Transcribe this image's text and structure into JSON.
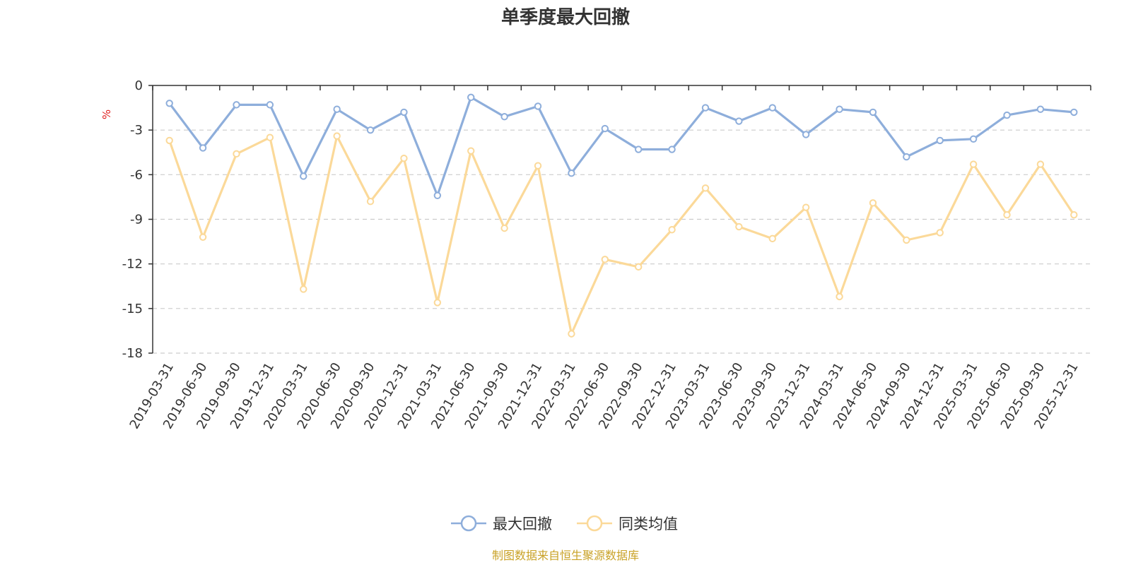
{
  "chart_data": {
    "type": "line",
    "title": "单季度最大回撤",
    "ylabel": "%",
    "ylim": [
      -18,
      0
    ],
    "yticks": [
      "0",
      "-3",
      "-6",
      "-9",
      "-12",
      "-15",
      "-18"
    ],
    "grid": true,
    "legend_position": "bottom-center",
    "categories": [
      "2019-03-31",
      "2019-06-30",
      "2019-09-30",
      "2019-12-31",
      "2020-03-31",
      "2020-06-30",
      "2020-09-30",
      "2020-12-31",
      "2021-03-31",
      "2021-06-30",
      "2021-09-30",
      "2021-12-31",
      "2022-03-31",
      "2022-06-30",
      "2022-09-30",
      "2022-12-31",
      "2023-03-31",
      "2023-06-30",
      "2023-09-30",
      "2023-12-31",
      "2024-03-31",
      "2024-06-30",
      "2024-09-30",
      "2024-12-31",
      "2025-03-31",
      "2025-06-30",
      "2025-09-30",
      "2025-12-31"
    ],
    "series": [
      {
        "name": "最大回撤",
        "color": "#8eaedb",
        "values": [
          -1.2,
          -4.2,
          -1.3,
          -1.3,
          -6.1,
          -1.6,
          -3.0,
          -1.8,
          -7.4,
          -0.8,
          -2.1,
          -1.4,
          -5.9,
          -2.9,
          -4.3,
          -4.3,
          -1.5,
          -2.4,
          -1.5,
          -3.3,
          -1.6,
          -1.8,
          -4.8,
          -3.7,
          -3.6,
          -2.0,
          -1.6,
          -1.8
        ]
      },
      {
        "name": "同类均值",
        "color": "#fbd999",
        "values": [
          -3.7,
          -10.2,
          -4.6,
          -3.5,
          -13.7,
          -3.4,
          -7.8,
          -4.9,
          -14.6,
          -4.4,
          -9.6,
          -5.4,
          -16.7,
          -11.7,
          -12.2,
          -9.7,
          -6.9,
          -9.5,
          -10.3,
          -8.2,
          -14.2,
          -7.9,
          -10.4,
          -9.9,
          -5.3,
          -8.7,
          -5.3,
          -8.7
        ]
      }
    ]
  },
  "source_note": "制图数据来自恒生聚源数据库"
}
